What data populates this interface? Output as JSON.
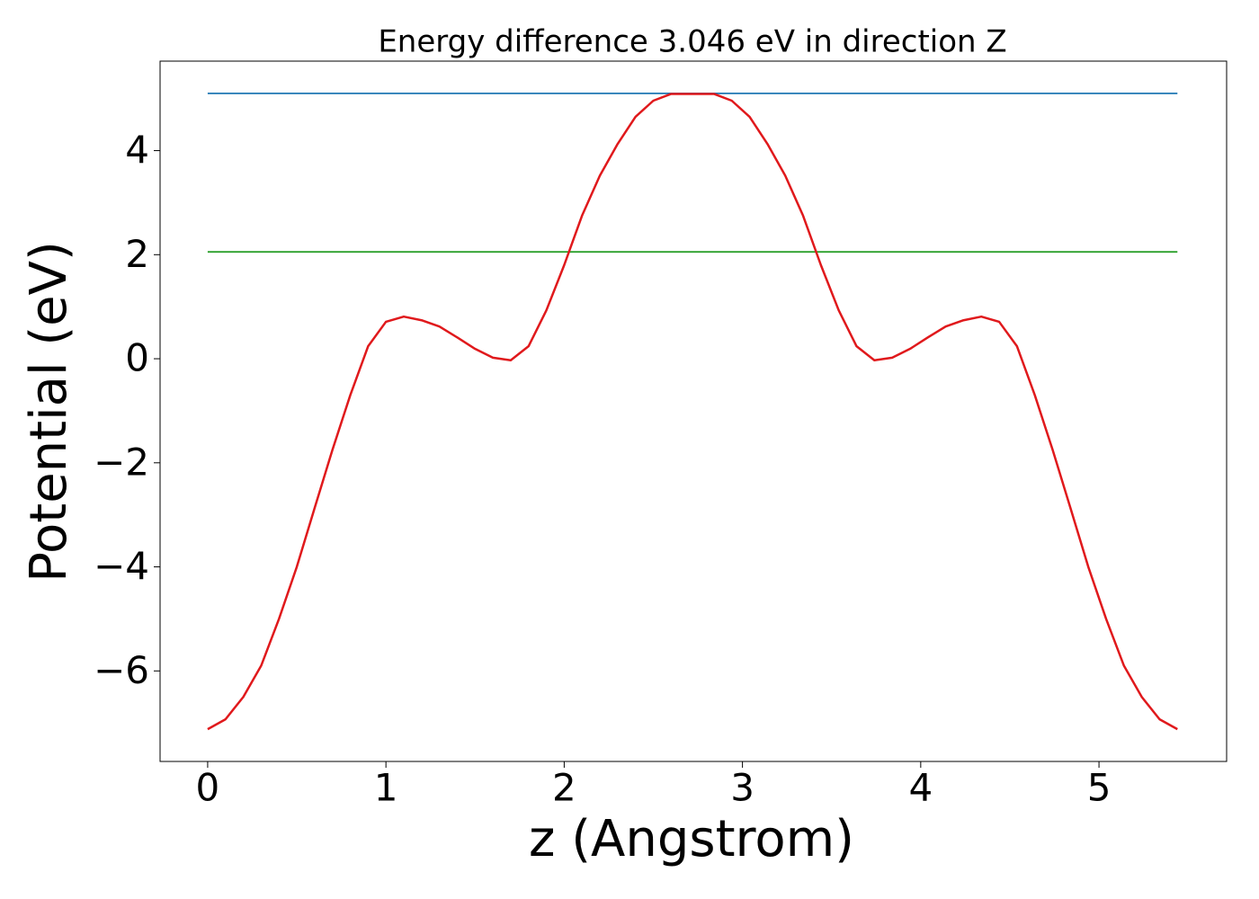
{
  "chart_data": {
    "type": "line",
    "title": "Energy difference 3.046 eV in direction Z",
    "x_label": "z (Angstrom)",
    "y_label": "Potential (eV)",
    "series": [
      {
        "color": "#1f77b4",
        "x": [
          0,
          5.44
        ],
        "values": [
          5.1,
          5.1
        ]
      },
      {
        "color": "#2ca02c",
        "x": [
          0,
          5.44
        ],
        "values": [
          2.054,
          2.054
        ]
      },
      {
        "color": "#e0191c",
        "x": [
          0,
          0.1,
          0.2,
          0.3,
          0.4,
          0.5,
          0.6,
          0.7,
          0.8,
          0.9,
          1.0,
          1.1,
          1.2,
          1.3,
          1.4,
          1.5,
          1.6,
          1.7,
          1.8,
          1.9,
          2.0,
          2.1,
          2.2,
          2.3,
          2.4,
          2.5,
          2.6,
          2.7,
          2.74,
          2.84,
          2.94,
          3.04,
          3.14,
          3.24,
          3.34,
          3.44,
          3.54,
          3.64,
          3.74,
          3.84,
          3.94,
          4.04,
          4.14,
          4.24,
          4.34,
          4.44,
          4.54,
          4.64,
          4.74,
          4.84,
          4.94,
          5.04,
          5.14,
          5.24,
          5.34,
          5.44
        ],
        "values": [
          -7.12,
          -6.93,
          -6.5,
          -5.9,
          -5.0,
          -4.0,
          -2.87,
          -1.75,
          -0.7,
          0.24,
          0.71,
          0.81,
          0.74,
          0.62,
          0.41,
          0.19,
          0.02,
          -0.03,
          0.24,
          0.93,
          1.8,
          2.75,
          3.52,
          4.13,
          4.65,
          4.96,
          5.09,
          5.09,
          5.09,
          5.09,
          4.96,
          4.65,
          4.13,
          3.52,
          2.75,
          1.8,
          0.93,
          0.24,
          -0.03,
          0.02,
          0.19,
          0.41,
          0.62,
          0.74,
          0.81,
          0.71,
          0.24,
          -0.7,
          -1.75,
          -2.87,
          -4.0,
          -5.0,
          -5.9,
          -6.5,
          -6.93,
          -7.12
        ]
      }
    ],
    "xlim": [
      -0.267,
      5.716
    ],
    "ylim": [
      -7.74,
      5.72
    ],
    "xticks": [
      0,
      1,
      2,
      3,
      4,
      5
    ],
    "yticks": [
      {
        "value": -6,
        "label": "−6"
      },
      {
        "value": -4,
        "label": "−4"
      },
      {
        "value": -2,
        "label": "−2"
      },
      0,
      2,
      4
    ],
    "grid": false
  }
}
